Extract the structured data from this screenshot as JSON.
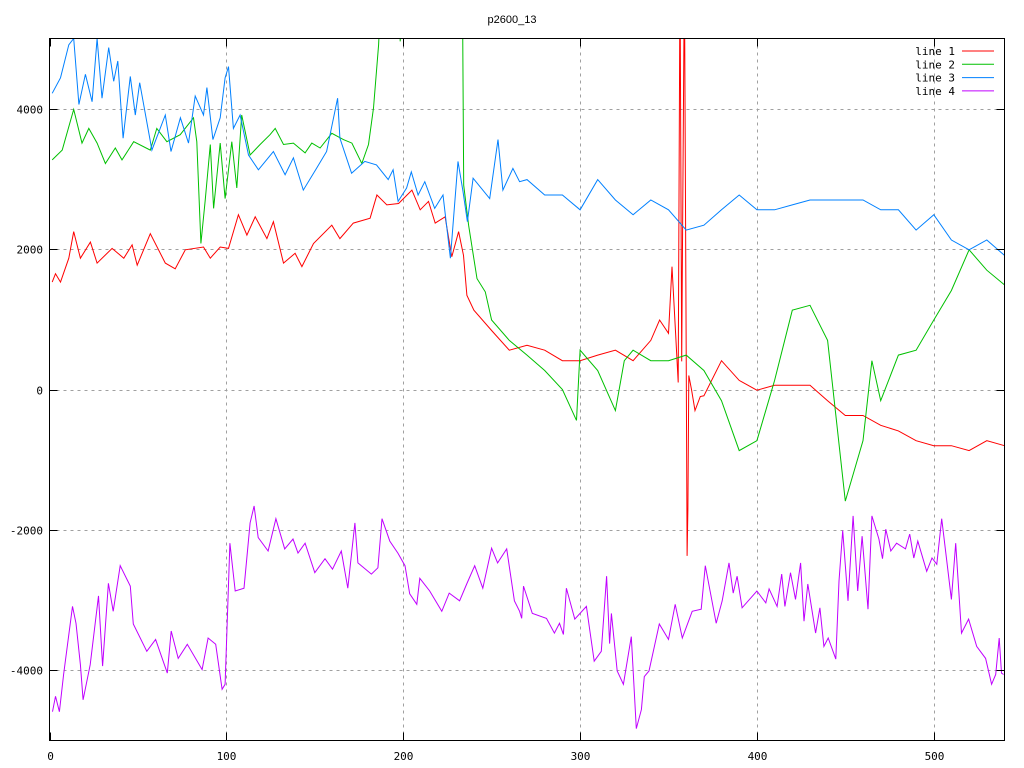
{
  "chart_data": {
    "type": "line",
    "title": "p2600_13",
    "xlabel": "",
    "ylabel": "",
    "xlim": [
      0,
      540
    ],
    "ylim": [
      -5000,
      5000
    ],
    "xticks": [
      0,
      100,
      200,
      300,
      400,
      500
    ],
    "yticks": [
      -4000,
      -2000,
      0,
      2000,
      4000
    ],
    "grid": true,
    "legend_position": "top-right",
    "series": [
      {
        "name": "line 1",
        "color": "#ff0000",
        "x": [
          1.5,
          3.4,
          6.2,
          10.9,
          13.7,
          17.5,
          23.1,
          26.9,
          35.4,
          42,
          46.7,
          49.6,
          57,
          65.5,
          71.1,
          76.8,
          87.1,
          90.9,
          96.5,
          101.2,
          106.8,
          111.6,
          116.3,
          122.9,
          126.6,
          132.3,
          138.9,
          142.7,
          149.3,
          159.6,
          164.2,
          171.8,
          181.3,
          185.1,
          190.7,
          197.4,
          204.9,
          209.6,
          214.3,
          218.1,
          223.7,
          227.5,
          231.3,
          234.1,
          236,
          240,
          250,
          260,
          270,
          280,
          290,
          300,
          310,
          320,
          330,
          340,
          345,
          350,
          352,
          354,
          355.5,
          356.5,
          357.5,
          359,
          360,
          360.5,
          361,
          361.5,
          363,
          365,
          368,
          370,
          380,
          390,
          400,
          410,
          420,
          430,
          440,
          450,
          460,
          470,
          480,
          490,
          500,
          510,
          520,
          530,
          540
        ],
        "y": [
          1530,
          1650,
          1530,
          1870,
          2250,
          1870,
          2100,
          1800,
          2010,
          1870,
          2060,
          1770,
          2220,
          1800,
          1720,
          1990,
          2030,
          1870,
          2030,
          2010,
          2490,
          2200,
          2460,
          2150,
          2390,
          1800,
          1940,
          1750,
          2080,
          2340,
          2150,
          2370,
          2440,
          2770,
          2630,
          2650,
          2840,
          2560,
          2680,
          2370,
          2460,
          1890,
          2250,
          1910,
          1340,
          1130,
          840,
          560,
          630,
          560,
          410,
          410,
          490,
          560,
          410,
          700,
          990,
          800,
          1750,
          800,
          100,
          6000,
          400,
          6000,
          500,
          -2370,
          -1700,
          200,
          0,
          -300,
          -100,
          -90,
          410,
          130,
          -10,
          60,
          60,
          60,
          -160,
          -370,
          -370,
          -510,
          -590,
          -730,
          -800,
          -800,
          -870,
          -730,
          -800
        ]
      },
      {
        "name": "line 2",
        "color": "#00c000",
        "x": [
          1.5,
          7.2,
          13.7,
          18.4,
          22.2,
          26.9,
          31.6,
          37.2,
          41,
          47.6,
          57,
          60.7,
          66.4,
          73.9,
          81.4,
          83.3,
          85.6,
          88,
          90.9,
          92.8,
          96.5,
          99.3,
          103.1,
          105.9,
          108.7,
          113.4,
          119.1,
          124.7,
          127.6,
          132.3,
          137.9,
          144.5,
          148.3,
          153,
          159.6,
          166.2,
          171,
          176.6,
          180.4,
          183.2,
          186.1,
          188,
          197,
          198.3,
          200,
          233.4,
          234.2,
          237,
          241.7,
          246.4,
          250,
          260,
          270,
          280,
          290,
          298,
          300,
          310,
          320,
          325,
          330,
          340,
          350,
          360,
          370,
          380,
          390,
          400,
          410,
          420,
          430,
          440,
          450,
          460,
          465,
          470,
          480,
          490,
          500,
          510,
          520,
          530,
          540
        ],
        "y": [
          3270,
          3410,
          3990,
          3510,
          3720,
          3510,
          3220,
          3440,
          3270,
          3530,
          3410,
          3720,
          3530,
          3630,
          3870,
          3530,
          2080,
          2680,
          3490,
          2580,
          3510,
          2720,
          3530,
          2870,
          3910,
          3340,
          3490,
          3630,
          3720,
          3490,
          3510,
          3370,
          3510,
          3440,
          3650,
          3560,
          3510,
          3220,
          3490,
          4010,
          4910,
          6000,
          6000,
          4960,
          6000,
          6000,
          2910,
          2340,
          1580,
          1390,
          990,
          700,
          490,
          270,
          0,
          -440,
          560,
          270,
          -300,
          410,
          560,
          410,
          410,
          490,
          270,
          -160,
          -870,
          -730,
          130,
          1130,
          1200,
          700,
          -1590,
          -730,
          410,
          -160,
          490,
          560,
          990,
          1410,
          1990,
          1700,
          1490
        ]
      },
      {
        "name": "line 3",
        "color": "#0080ff",
        "x": [
          1.5,
          6.2,
          10.9,
          13.7,
          16.6,
          20.3,
          24.1,
          26.9,
          29.7,
          33.5,
          36.3,
          38.6,
          41.6,
          45.7,
          48.5,
          51,
          57.9,
          65.5,
          68.7,
          74,
          78.6,
          82.4,
          87.1,
          89,
          92.4,
          96.5,
          99.3,
          101.2,
          104,
          107.8,
          112.5,
          118.1,
          126.6,
          133.2,
          137.9,
          143.5,
          151,
          156.7,
          162.9,
          164.2,
          170.8,
          178.3,
          184.9,
          191.5,
          194.3,
          197.1,
          201.9,
          204.6,
          208.4,
          212.2,
          217.8,
          222.5,
          226.7,
          231,
          233.8,
          236.3,
          239.5,
          248.9,
          253.6,
          256.4,
          262,
          265.8,
          270,
          280,
          290,
          300,
          310,
          320,
          330,
          340,
          350,
          360,
          370,
          380,
          390,
          400,
          410,
          420,
          430,
          440,
          450,
          460,
          470,
          480,
          490,
          500,
          510,
          520,
          530,
          540
        ],
        "y": [
          4220,
          4440,
          4910,
          5000,
          4060,
          4490,
          4100,
          5000,
          4150,
          4870,
          4390,
          4680,
          3580,
          4460,
          3910,
          4370,
          3410,
          3910,
          3390,
          3870,
          3510,
          4180,
          3910,
          4300,
          3560,
          3870,
          4440,
          4600,
          3720,
          3910,
          3340,
          3130,
          3390,
          3060,
          3300,
          2840,
          3150,
          3390,
          4150,
          3580,
          3080,
          3250,
          3200,
          2990,
          3130,
          2680,
          2870,
          3100,
          2770,
          2960,
          2580,
          2770,
          1870,
          3250,
          2820,
          2390,
          3010,
          2720,
          3560,
          2840,
          3150,
          2960,
          2990,
          2770,
          2770,
          2560,
          2990,
          2700,
          2490,
          2700,
          2560,
          2270,
          2340,
          2560,
          2770,
          2560,
          2560,
          2630,
          2700,
          2700,
          2700,
          2700,
          2560,
          2560,
          2270,
          2490,
          2130,
          1990,
          2130,
          1910
        ]
      },
      {
        "name": "line 4",
        "color": "#c000ff",
        "x": [
          1.7,
          3.4,
          5.6,
          8,
          13,
          15,
          17.5,
          19,
          23,
          27.7,
          30,
          33.3,
          36,
          40,
          45.7,
          47.4,
          55,
          60,
          66.6,
          68.8,
          72.8,
          77.9,
          86.3,
          89.7,
          94,
          97.6,
          99.3,
          102,
          105,
          110,
          113.4,
          115.7,
          118,
          123.6,
          128,
          133,
          137.7,
          140.5,
          144.5,
          150,
          155.8,
          160,
          165,
          168.7,
          172.7,
          174.4,
          182,
          185.7,
          188,
          192.4,
          197,
          201,
          203.7,
          207.7,
          209.4,
          215,
          221.8,
          226,
          231.9,
          235.9,
          240.4,
          245,
          250,
          253.4,
          258.5,
          262.9,
          265.8,
          267,
          268,
          273,
          281,
          285.5,
          288.4,
          290.6,
          292.3,
          297,
          303.6,
          308,
          312,
          315,
          316.7,
          317.7,
          321,
          324.5,
          329,
          331.8,
          334.7,
          336.3,
          339,
          344.8,
          350,
          353.8,
          357.8,
          363.4,
          368.5,
          370.8,
          377,
          380.4,
          384.2,
          386.6,
          388.8,
          391.6,
          400,
          405,
          406.9,
          411.4,
          414,
          415.8,
          419,
          421.8,
          424.7,
          426.6,
          428.8,
          433.2,
          435.6,
          437.9,
          440.3,
          444.6,
          446.4,
          448.5,
          451.5,
          454.4,
          457,
          459.5,
          462.8,
          465,
          469,
          471,
          472.9,
          475.7,
          479,
          484,
          486.4,
          488.7,
          491,
          496,
          499,
          501.7,
          504.5,
          510,
          512.4,
          515.7,
          519.7,
          524.3,
          529.3,
          532.7,
          535,
          537,
          538.3,
          539.5
        ],
        "y": [
          -4590,
          -4370,
          -4590,
          -4060,
          -3090,
          -3330,
          -3920,
          -4420,
          -3920,
          -2940,
          -3940,
          -2760,
          -3160,
          -2510,
          -2800,
          -3340,
          -3730,
          -3560,
          -4040,
          -3440,
          -3830,
          -3630,
          -3990,
          -3540,
          -3630,
          -4270,
          -4200,
          -2190,
          -2870,
          -2830,
          -1900,
          -1660,
          -2110,
          -2300,
          -1840,
          -2270,
          -2130,
          -2330,
          -2190,
          -2610,
          -2410,
          -2560,
          -2300,
          -2830,
          -1900,
          -2470,
          -2630,
          -2540,
          -1840,
          -2160,
          -2330,
          -2510,
          -2910,
          -3060,
          -2690,
          -2870,
          -3160,
          -2900,
          -3010,
          -2770,
          -2510,
          -2830,
          -2260,
          -2470,
          -2270,
          -3010,
          -3160,
          -3260,
          -2800,
          -3190,
          -3260,
          -3470,
          -3330,
          -3490,
          -2830,
          -3270,
          -3090,
          -3870,
          -3730,
          -2660,
          -3620,
          -3190,
          -4010,
          -4200,
          -3520,
          -4830,
          -4560,
          -4090,
          -4010,
          -3340,
          -3560,
          -3060,
          -3540,
          -3160,
          -3130,
          -2510,
          -3330,
          -3010,
          -2470,
          -2900,
          -2660,
          -3110,
          -2870,
          -3040,
          -2840,
          -3090,
          -2630,
          -3090,
          -2610,
          -2990,
          -2470,
          -3300,
          -2770,
          -3470,
          -3110,
          -3660,
          -3540,
          -3840,
          -2730,
          -2010,
          -3010,
          -1800,
          -2870,
          -2090,
          -3130,
          -1800,
          -2130,
          -2410,
          -1990,
          -2300,
          -2190,
          -2270,
          -2060,
          -2400,
          -2160,
          -2590,
          -2400,
          -2490,
          -1840,
          -2990,
          -2190,
          -3470,
          -3270,
          -3660,
          -3830,
          -4200,
          -4060,
          -3540,
          -4040,
          -4060
        ]
      }
    ]
  }
}
